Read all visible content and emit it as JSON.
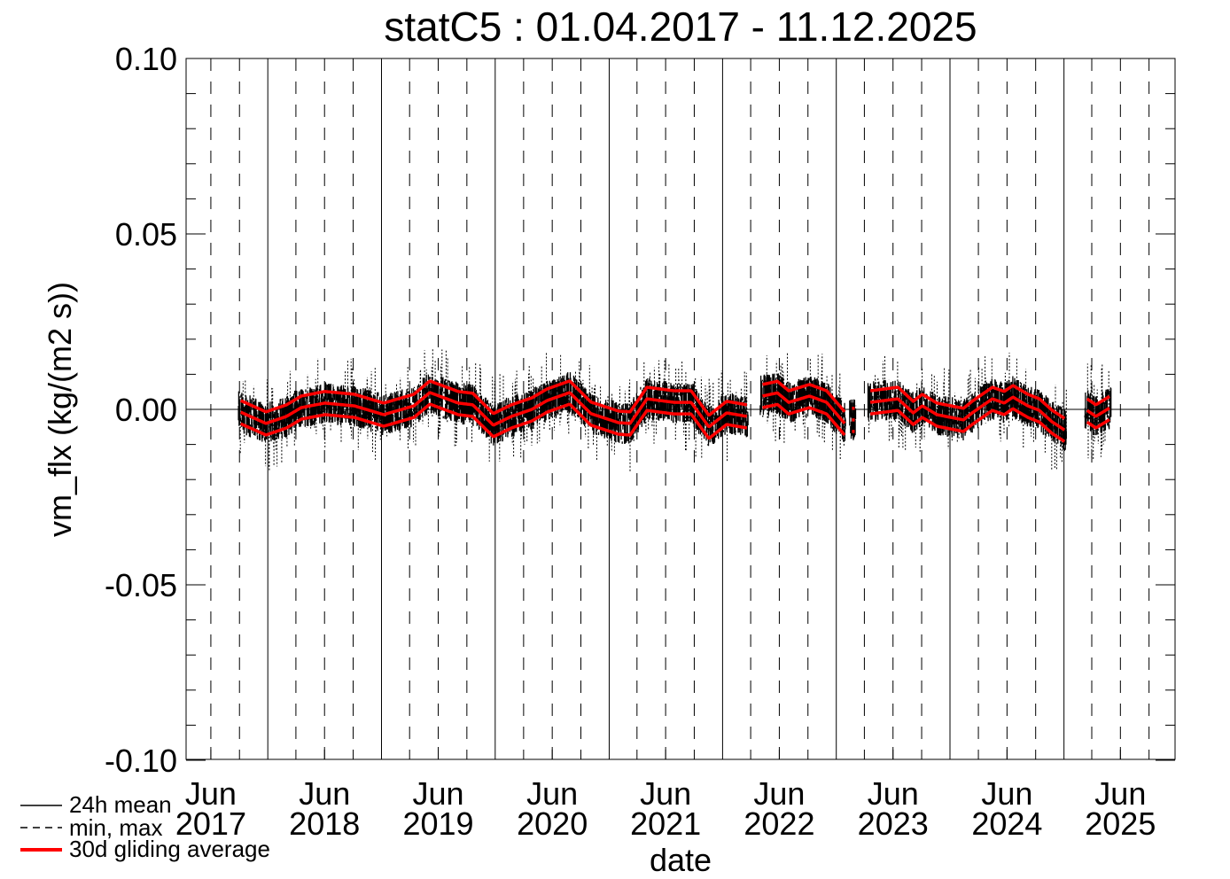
{
  "chart_data": {
    "type": "line",
    "title": "statC5 : 01.04.2017 - 11.12.2025",
    "xlabel": "date",
    "ylabel": "vm_flx (kg/(m2 s))",
    "date_range": [
      "2017-04-01",
      "2025-12-11"
    ],
    "ylim": [
      -0.1,
      0.1
    ],
    "y_ticks": [
      "0.10",
      "0.05",
      "0.00",
      "-0.05",
      "-0.10"
    ],
    "y_tick_values": [
      0.1,
      0.05,
      0.0,
      -0.05,
      -0.1
    ],
    "y_minor_step": 0.01,
    "x_ticks": [
      {
        "month": "Jun",
        "year": "2017"
      },
      {
        "month": "Jun",
        "year": "2018"
      },
      {
        "month": "Jun",
        "year": "2019"
      },
      {
        "month": "Jun",
        "year": "2020"
      },
      {
        "month": "Jun",
        "year": "2021"
      },
      {
        "month": "Jun",
        "year": "2022"
      },
      {
        "month": "Jun",
        "year": "2023"
      },
      {
        "month": "Jun",
        "year": "2024"
      },
      {
        "month": "Jun",
        "year": "2025"
      }
    ],
    "grid": "vertical: solid at year boundaries, dashed quarterly; horizontal zero line",
    "legend_placement": "bottom-left",
    "legend": [
      {
        "label": "24h mean",
        "style": "solid",
        "color": "#000000"
      },
      {
        "label": "min, max",
        "style": "dashed",
        "color": "#000000"
      },
      {
        "label": "30d gliding average",
        "style": "solid-thick",
        "color": "#ff0000"
      }
    ],
    "gliding_average_band_halfwidth": 0.0033,
    "gliding_average_segments": [
      [
        [
          "2017-09-05",
          -0.0008
        ],
        [
          "2017-11-25",
          -0.004
        ],
        [
          "2018-01-30",
          -0.002
        ],
        [
          "2018-03-18",
          0.0005
        ],
        [
          "2018-06-02",
          0.0018
        ],
        [
          "2018-09-05",
          0.001
        ],
        [
          "2018-12-08",
          -0.0015
        ],
        [
          "2019-03-15",
          0.001
        ],
        [
          "2019-05-05",
          0.0048
        ],
        [
          "2019-08-04",
          0.0018
        ],
        [
          "2019-09-20",
          0.0013
        ],
        [
          "2019-11-25",
          -0.0045
        ],
        [
          "2020-01-22",
          -0.002
        ],
        [
          "2020-03-28",
          0.0
        ],
        [
          "2020-05-15",
          0.0025
        ],
        [
          "2020-07-27",
          0.0048
        ],
        [
          "2020-10-03",
          -0.0012
        ],
        [
          "2021-01-01",
          -0.0038
        ],
        [
          "2021-02-07",
          -0.004
        ],
        [
          "2021-04-02",
          0.003
        ],
        [
          "2021-06-28",
          0.002
        ],
        [
          "2021-08-22",
          0.002
        ],
        [
          "2021-10-18",
          -0.005
        ],
        [
          "2021-12-14",
          -0.001
        ],
        [
          "2022-02-17",
          -0.002
        ]
      ],
      [
        [
          "2022-04-08",
          0.0038
        ],
        [
          "2022-05-26",
          0.0047
        ],
        [
          "2022-07-01",
          0.002
        ],
        [
          "2022-09-06",
          0.0038
        ],
        [
          "2022-10-31",
          0.002
        ],
        [
          "2022-12-28",
          -0.004
        ]
      ],
      [
        [
          "2023-01-20",
          -0.003
        ],
        [
          "2023-01-30",
          -0.003
        ]
      ],
      [
        [
          "2023-03-20",
          0.002
        ],
        [
          "2023-06-17",
          0.003
        ],
        [
          "2023-08-05",
          -0.001
        ],
        [
          "2023-09-03",
          0.001
        ],
        [
          "2023-10-20",
          -0.0015
        ],
        [
          "2024-01-13",
          -0.003
        ],
        [
          "2024-02-10",
          -0.001
        ],
        [
          "2024-04-15",
          0.003
        ],
        [
          "2024-05-23",
          0.0018
        ],
        [
          "2024-06-20",
          0.0035
        ],
        [
          "2024-08-07",
          0.001
        ],
        [
          "2024-09-13",
          -0.0003
        ],
        [
          "2024-10-23",
          -0.0035
        ],
        [
          "2024-12-05",
          -0.006
        ]
      ],
      [
        [
          "2025-02-14",
          -0.0003
        ],
        [
          "2025-03-14",
          -0.002
        ],
        [
          "2025-04-29",
          0.0005
        ]
      ]
    ],
    "daily_mean_spread": 0.006,
    "colors": {
      "data": "#000000",
      "average": "#ff0000",
      "axes": "#000000"
    }
  }
}
